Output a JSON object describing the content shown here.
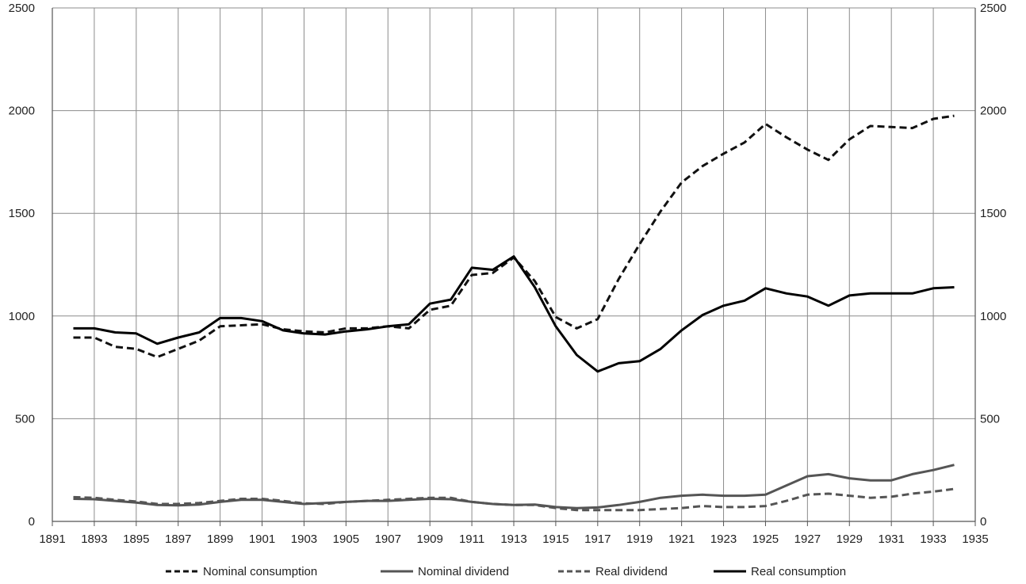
{
  "chart_data": {
    "type": "line",
    "title": "",
    "xlabel": "",
    "ylabel": "",
    "xlim": [
      1891,
      1935
    ],
    "ylim": [
      0,
      2500
    ],
    "y2lim": [
      0,
      2500
    ],
    "xticks": [
      "1891",
      "1893",
      "1895",
      "1897",
      "1899",
      "1901",
      "1903",
      "1905",
      "1907",
      "1909",
      "1911",
      "1913",
      "1915",
      "1917",
      "1919",
      "1921",
      "1923",
      "1925",
      "1927",
      "1929",
      "1931",
      "1933",
      "1935"
    ],
    "yticks": [
      "0",
      "500",
      "1000",
      "1500",
      "2000",
      "2500"
    ],
    "y2ticks": [
      "0",
      "500",
      "1000",
      "1500",
      "2000",
      "2500"
    ],
    "grid": true,
    "legend": {
      "position": "bottom"
    },
    "series": [
      {
        "name": "Nominal consumption",
        "color": "#111111",
        "style": "dashed",
        "x": [
          1892,
          1893,
          1894,
          1895,
          1896,
          1897,
          1898,
          1899,
          1900,
          1901,
          1902,
          1903,
          1904,
          1905,
          1906,
          1907,
          1908,
          1909,
          1910,
          1911,
          1912,
          1913,
          1914,
          1915,
          1916,
          1917,
          1918,
          1919,
          1920,
          1921,
          1922,
          1923,
          1924,
          1925,
          1926,
          1927,
          1928,
          1929,
          1930,
          1931,
          1932,
          1933,
          1934
        ],
        "y": [
          895,
          895,
          850,
          840,
          800,
          840,
          880,
          950,
          955,
          960,
          935,
          925,
          920,
          940,
          940,
          950,
          940,
          1030,
          1050,
          1200,
          1210,
          1285,
          1170,
          995,
          940,
          985,
          1180,
          1350,
          1510,
          1650,
          1730,
          1790,
          1845,
          1935,
          1870,
          1810,
          1760,
          1860,
          1925,
          1920,
          1915,
          1960,
          1975
        ]
      },
      {
        "name": "Nominal dividend",
        "color": "#555555",
        "style": "solid",
        "x": [
          1892,
          1893,
          1894,
          1895,
          1896,
          1897,
          1898,
          1899,
          1900,
          1901,
          1902,
          1903,
          1904,
          1905,
          1906,
          1907,
          1908,
          1909,
          1910,
          1911,
          1912,
          1913,
          1914,
          1915,
          1916,
          1917,
          1918,
          1919,
          1920,
          1921,
          1922,
          1923,
          1924,
          1925,
          1926,
          1927,
          1928,
          1929,
          1930,
          1931,
          1932,
          1933,
          1934
        ],
        "y": [
          110,
          108,
          100,
          92,
          80,
          78,
          82,
          95,
          105,
          105,
          95,
          85,
          90,
          95,
          100,
          100,
          105,
          110,
          108,
          95,
          85,
          80,
          82,
          70,
          65,
          68,
          80,
          95,
          115,
          125,
          130,
          125,
          125,
          130,
          175,
          220,
          230,
          210,
          200,
          200,
          230,
          250,
          275
        ]
      },
      {
        "name": "Real dividend",
        "color": "#555555",
        "style": "dashed",
        "x": [
          1892,
          1893,
          1894,
          1895,
          1896,
          1897,
          1898,
          1899,
          1900,
          1901,
          1902,
          1903,
          1904,
          1905,
          1906,
          1907,
          1908,
          1909,
          1910,
          1911,
          1912,
          1913,
          1914,
          1915,
          1916,
          1917,
          1918,
          1919,
          1920,
          1921,
          1922,
          1923,
          1924,
          1925,
          1926,
          1927,
          1928,
          1929,
          1930,
          1931,
          1932,
          1933,
          1934
        ],
        "y": [
          118,
          115,
          105,
          97,
          85,
          85,
          90,
          100,
          110,
          110,
          100,
          88,
          85,
          95,
          100,
          105,
          110,
          115,
          115,
          95,
          85,
          80,
          80,
          65,
          55,
          55,
          55,
          55,
          60,
          65,
          75,
          70,
          70,
          75,
          100,
          130,
          135,
          125,
          115,
          120,
          135,
          145,
          158
        ]
      },
      {
        "name": "Real consumption",
        "color": "#000000",
        "style": "solid",
        "x": [
          1892,
          1893,
          1894,
          1895,
          1896,
          1897,
          1898,
          1899,
          1900,
          1901,
          1902,
          1903,
          1904,
          1905,
          1906,
          1907,
          1908,
          1909,
          1910,
          1911,
          1912,
          1913,
          1914,
          1915,
          1916,
          1917,
          1918,
          1919,
          1920,
          1921,
          1922,
          1923,
          1924,
          1925,
          1926,
          1927,
          1928,
          1929,
          1930,
          1931,
          1932,
          1933,
          1934
        ],
        "y": [
          940,
          940,
          920,
          915,
          865,
          895,
          920,
          990,
          990,
          975,
          930,
          915,
          910,
          925,
          935,
          950,
          960,
          1060,
          1080,
          1235,
          1225,
          1290,
          1140,
          950,
          810,
          730,
          770,
          780,
          840,
          930,
          1005,
          1050,
          1075,
          1135,
          1110,
          1095,
          1050,
          1100,
          1110,
          1110,
          1110,
          1135,
          1140
        ]
      }
    ]
  }
}
